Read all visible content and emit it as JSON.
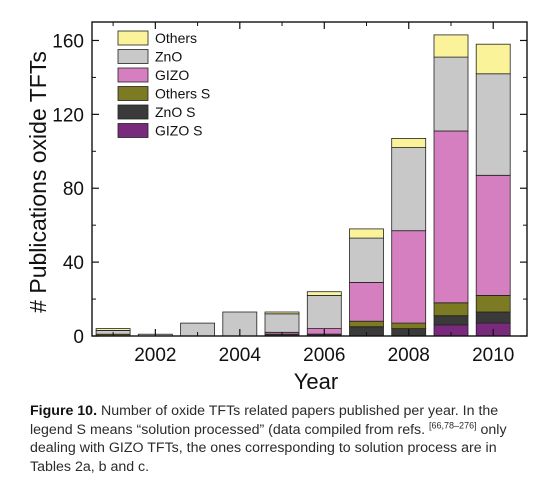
{
  "chart_data": {
    "type": "bar",
    "stacked": true,
    "xlabel": "Year",
    "ylabel": "# Publications oxide TFTs",
    "ylim": [
      0,
      170
    ],
    "xlim": [
      2000.5,
      2010.8
    ],
    "yticks": [
      0,
      40,
      80,
      120,
      160
    ],
    "xticks": [
      2002,
      2004,
      2006,
      2008,
      2010
    ],
    "grid": false,
    "legend_position": "top-left",
    "years": [
      2001,
      2002,
      2003,
      2004,
      2005,
      2006,
      2007,
      2008,
      2009,
      2010
    ],
    "series": [
      {
        "name": "GIZO S",
        "color": "#7a2a7c",
        "values": [
          0,
          0,
          0,
          0,
          0,
          0,
          0,
          0,
          6,
          7
        ]
      },
      {
        "name": "ZnO S",
        "color": "#3a3a3a",
        "values": [
          0,
          0,
          0,
          0,
          1,
          1,
          5,
          4,
          5,
          6
        ]
      },
      {
        "name": "Others S",
        "color": "#7c7a22",
        "values": [
          1,
          0,
          0,
          0,
          0,
          0,
          3,
          3,
          7,
          9
        ]
      },
      {
        "name": "GIZO",
        "color": "#d67fc0",
        "values": [
          0,
          0,
          0,
          0,
          1,
          3,
          21,
          50,
          93,
          65
        ]
      },
      {
        "name": "ZnO",
        "color": "#c8c8c8",
        "values": [
          2,
          1,
          7,
          13,
          10,
          18,
          24,
          45,
          40,
          55
        ]
      },
      {
        "name": "Others",
        "color": "#fbf39a",
        "values": [
          1,
          0,
          0,
          0,
          1,
          2,
          5,
          5,
          12,
          16
        ]
      }
    ],
    "legend_order": [
      "Others",
      "ZnO",
      "GIZO",
      "Others S",
      "ZnO S",
      "GIZO S"
    ]
  },
  "caption": {
    "label": "Figure 10.",
    "text_before_sup": " Number of oxide TFTs related papers published per year. In the legend S means “solution processed” (data compiled from refs. ",
    "sup": "[66,78–276]",
    "text_after_sup": " only dealing with GIZO TFTs, the ones corresponding to solution process are in Tables 2a, b and c."
  }
}
